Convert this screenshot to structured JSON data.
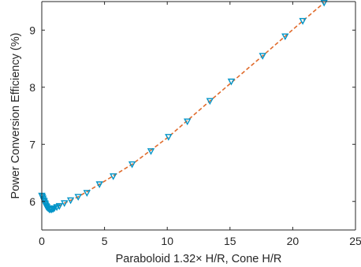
{
  "chart_data": {
    "type": "scatter",
    "title": "",
    "xlabel": "Paraboloid 1.32× H/R, Cone H/R",
    "ylabel": "Power Conversion Efficiency (%)",
    "xlim": [
      0,
      25
    ],
    "ylim": [
      5.5,
      9.5
    ],
    "xticks": [
      0,
      5,
      10,
      15,
      20,
      25
    ],
    "yticks": [
      6,
      7,
      8,
      9
    ],
    "grid": false,
    "legend": "none",
    "colors": {
      "marker": "#0094c8",
      "fit_line": "#e06b2c",
      "axis": "#262626"
    },
    "series": [
      {
        "marker": "triangle-down",
        "x": [
          0.0,
          0.05,
          0.1,
          0.15,
          0.2,
          0.25,
          0.3,
          0.35,
          0.4,
          0.5,
          0.6,
          0.7,
          0.8,
          0.9,
          1.0,
          1.2,
          1.4,
          1.8,
          2.3,
          2.9,
          3.6,
          4.6,
          5.7,
          7.2,
          8.7,
          10.1,
          11.6,
          13.4,
          15.1,
          17.6,
          19.4,
          20.8,
          22.5
        ],
        "y": [
          6.1,
          6.08,
          6.05,
          6.02,
          6.0,
          5.97,
          5.95,
          5.92,
          5.9,
          5.88,
          5.86,
          5.86,
          5.86,
          5.87,
          5.88,
          5.9,
          5.92,
          5.97,
          6.02,
          6.08,
          6.15,
          6.3,
          6.44,
          6.65,
          6.88,
          7.13,
          7.4,
          7.76,
          8.1,
          8.55,
          8.89,
          9.16,
          9.48
        ]
      }
    ],
    "fit_line": {
      "style": "dashed",
      "x": [
        0.0,
        0.3,
        0.6,
        0.8,
        1.2,
        1.8,
        2.9,
        4.6,
        7.2,
        10.1,
        13.4,
        17.6,
        20.8,
        22.5
      ],
      "y": [
        6.1,
        5.95,
        5.87,
        5.86,
        5.9,
        5.97,
        6.08,
        6.3,
        6.65,
        7.13,
        7.76,
        8.55,
        9.16,
        9.48
      ]
    }
  }
}
